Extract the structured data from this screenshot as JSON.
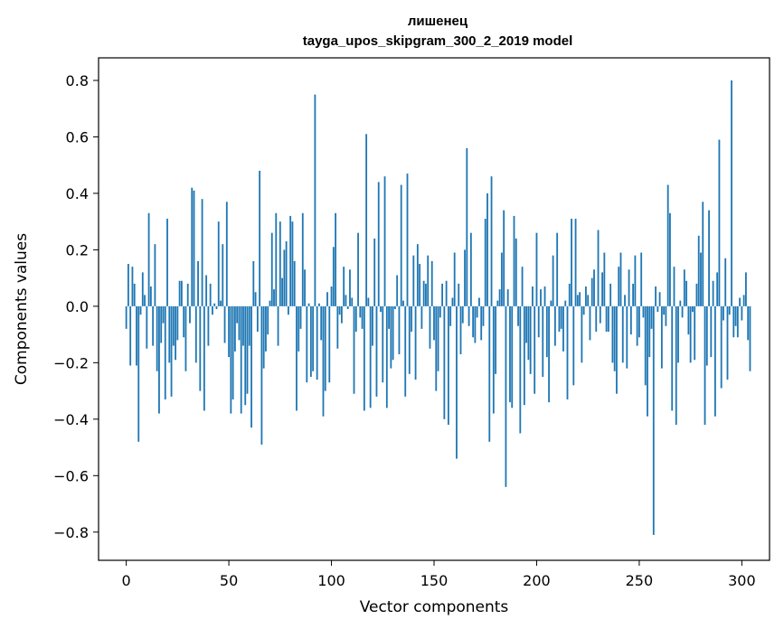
{
  "chart_data": {
    "type": "bar",
    "title": "лишенец",
    "subtitle": "tayga_upos_skipgram_300_2_2019 model",
    "xlabel": "Vector components",
    "ylabel": "Components values",
    "xlim": [
      -13.5,
      313.5
    ],
    "ylim": [
      -0.9,
      0.88
    ],
    "xticks": [
      0,
      50,
      100,
      150,
      200,
      250,
      300
    ],
    "xtick_labels": [
      "0",
      "50",
      "100",
      "150",
      "200",
      "250",
      "300"
    ],
    "yticks": [
      -0.8,
      -0.6,
      -0.4,
      -0.2,
      0.0,
      0.2,
      0.4,
      0.6,
      0.8
    ],
    "ytick_labels": [
      "−0.8",
      "−0.6",
      "−0.4",
      "−0.2",
      "0.0",
      "0.2",
      "0.4",
      "0.6",
      "0.8"
    ],
    "grid": false,
    "bar_color": "#1f77b4",
    "series": [
      {
        "x_start": 0,
        "values": [
          -0.08,
          0.15,
          -0.21,
          0.14,
          0.08,
          -0.21,
          -0.48,
          -0.03,
          0.12,
          0.04,
          -0.15,
          0.33,
          0.07,
          -0.14,
          0.22,
          -0.23,
          -0.38,
          -0.13,
          -0.06,
          -0.33,
          0.31,
          -0.2,
          -0.32,
          -0.14,
          -0.19,
          -0.12,
          0.09,
          0.09,
          -0.11,
          -0.23,
          0.08,
          -0.06,
          0.42,
          0.41,
          -0.2,
          0.16,
          -0.3,
          0.38,
          -0.37,
          0.11,
          -0.14,
          0.08,
          -0.03,
          0.01,
          -0.01,
          0.3,
          0.02,
          0.22,
          -0.13,
          0.37,
          -0.18,
          -0.38,
          -0.33,
          -0.16,
          -0.06,
          -0.12,
          -0.38,
          -0.14,
          -0.35,
          -0.31,
          -0.14,
          -0.43,
          0.16,
          0.05,
          -0.09,
          0.48,
          -0.49,
          -0.22,
          -0.16,
          -0.1,
          0.02,
          0.26,
          0.06,
          0.33,
          -0.14,
          0.3,
          0.1,
          0.2,
          0.23,
          -0.03,
          0.32,
          0.3,
          0.16,
          -0.37,
          -0.16,
          -0.08,
          0.33,
          0.13,
          -0.27,
          0.01,
          -0.25,
          -0.23,
          0.75,
          -0.26,
          0.01,
          -0.12,
          -0.39,
          -0.3,
          0.05,
          -0.27,
          0.07,
          0.21,
          0.33,
          -0.15,
          -0.03,
          -0.06,
          0.14,
          0.04,
          -0.01,
          0.13,
          0.03,
          -0.31,
          -0.09,
          0.26,
          -0.04,
          -0.08,
          -0.37,
          0.61,
          0.03,
          -0.36,
          -0.14,
          0.24,
          -0.32,
          0.44,
          -0.02,
          -0.27,
          0.46,
          -0.36,
          -0.08,
          -0.22,
          -0.19,
          -0.01,
          0.11,
          -0.17,
          0.43,
          0.02,
          -0.32,
          0.47,
          -0.24,
          -0.09,
          0.18,
          -0.26,
          0.22,
          0.15,
          -0.08,
          0.09,
          0.08,
          0.18,
          -0.15,
          0.16,
          -0.12,
          -0.3,
          -0.23,
          -0.04,
          0.08,
          -0.4,
          0.09,
          -0.42,
          -0.07,
          0.03,
          0.19,
          -0.54,
          0.08,
          -0.17,
          -0.06,
          0.2,
          0.56,
          -0.07,
          0.26,
          -0.11,
          -0.13,
          -0.04,
          0.03,
          -0.12,
          -0.07,
          0.31,
          0.4,
          -0.48,
          0.46,
          -0.38,
          -0.24,
          0.02,
          0.06,
          0.19,
          0.34,
          -0.64,
          0.06,
          -0.34,
          -0.36,
          0.32,
          0.24,
          -0.07,
          -0.45,
          0.14,
          -0.35,
          -0.13,
          -0.19,
          -0.24,
          0.07,
          -0.31,
          0.26,
          -0.11,
          0.06,
          -0.25,
          0.07,
          -0.18,
          -0.34,
          0.02,
          0.18,
          -0.14,
          0.26,
          -0.09,
          -0.08,
          -0.16,
          0.02,
          -0.33,
          0.08,
          0.31,
          -0.28,
          0.31,
          0.04,
          0.05,
          -0.2,
          -0.03,
          0.07,
          0.04,
          -0.12,
          0.1,
          0.13,
          -0.09,
          0.27,
          -0.06,
          0.12,
          0.19,
          -0.09,
          -0.09,
          0.08,
          -0.2,
          -0.23,
          -0.31,
          0.14,
          0.19,
          -0.2,
          0.04,
          -0.22,
          0.13,
          -0.1,
          0.08,
          0.18,
          -0.14,
          -0.11,
          0.19,
          -0.04,
          -0.28,
          -0.39,
          -0.18,
          -0.08,
          -0.81,
          0.07,
          -0.02,
          0.05,
          -0.22,
          -0.03,
          -0.07,
          0.43,
          0.33,
          -0.37,
          0.14,
          -0.42,
          -0.2,
          0.02,
          -0.04,
          0.13,
          0.09,
          -0.1,
          -0.2,
          -0.02,
          -0.19,
          0.08,
          0.25,
          0.19,
          0.37,
          -0.42,
          -0.21,
          0.34,
          -0.18,
          0.09,
          -0.39,
          0.12,
          0.59,
          -0.29,
          -0.05,
          0.17,
          -0.26,
          -0.03,
          0.8,
          -0.11,
          -0.07,
          -0.11,
          0.03,
          -0.05,
          0.04,
          0.12,
          -0.12,
          -0.23
        ]
      }
    ]
  }
}
